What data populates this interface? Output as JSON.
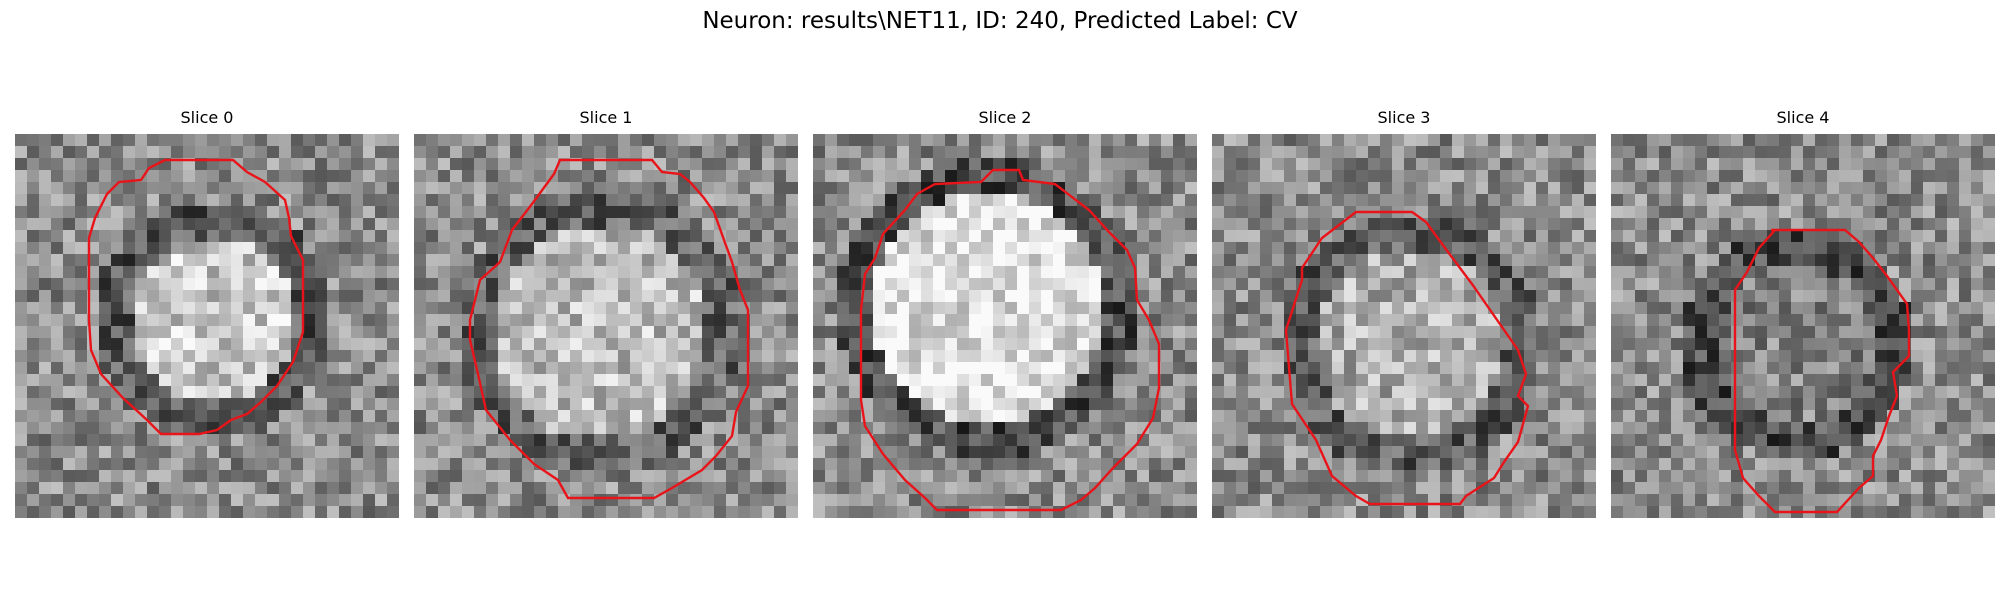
{
  "figure": {
    "title": "Neuron: results\\NET11, ID: 240, Predicted Label: CV"
  },
  "panels": [
    {
      "title": "Slice 0",
      "seed": 11,
      "blob_brightness": 0.78,
      "ring_darkness": 0.34
    },
    {
      "title": "Slice 1",
      "seed": 23,
      "blob_brightness": 0.74,
      "ring_darkness": 0.38
    },
    {
      "title": "Slice 2",
      "seed": 37,
      "blob_brightness": 0.88,
      "ring_darkness": 0.3
    },
    {
      "title": "Slice 3",
      "seed": 41,
      "blob_brightness": 0.68,
      "ring_darkness": 0.36
    },
    {
      "title": "Slice 4",
      "seed": 53,
      "blob_brightness": 0.52,
      "ring_darkness": 0.3
    }
  ],
  "colors": {
    "contour": "#e8141a",
    "background": "#ffffff"
  }
}
